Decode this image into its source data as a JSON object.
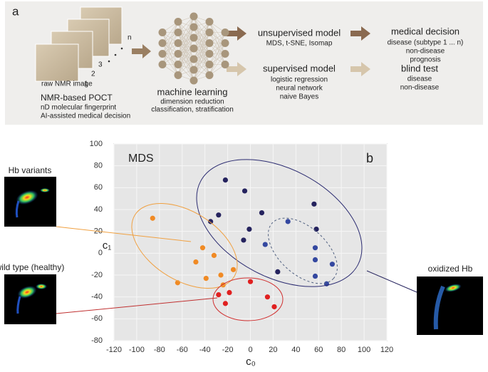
{
  "diagram": {
    "panel_a": {
      "label": "a",
      "image_stack": {
        "caption": "raw NMR image",
        "numbers": [
          "1",
          "2",
          "3",
          "n"
        ]
      },
      "poct": [
        "NMR-based POCT",
        "nD molecular fingerprint",
        "AI-assisted medical decision"
      ],
      "ml": [
        "machine learning",
        "dimension reduction",
        "classification, stratification"
      ],
      "unsupervised": [
        "unsupervised model",
        "MDS, t-SNE, Isomap"
      ],
      "supervised": [
        "supervised model",
        "logistic regression",
        "neural network",
        "naive Bayes"
      ],
      "decision": [
        "medical decision",
        "disease (subtype 1 ... n)",
        "non-disease",
        "prognosis"
      ],
      "blind": [
        "blind test",
        "disease",
        "non-disease"
      ]
    },
    "insets": [
      "Hb variants",
      "wild type (healthy)",
      "oxidized Hb"
    ]
  },
  "chart_data": {
    "type": "scatter",
    "title": "MDS",
    "panel_label": "b",
    "x_label": "c₀",
    "y_label": "c₁",
    "xlim": [
      -120,
      120
    ],
    "xticks": [
      -120,
      -100,
      -80,
      -60,
      -40,
      -20,
      0,
      20,
      40,
      60,
      80,
      100,
      120
    ],
    "ylim": [
      -80,
      100
    ],
    "yticks": [
      -80,
      -60,
      -40,
      -20,
      0,
      20,
      40,
      60,
      80,
      100
    ],
    "grid": true,
    "series": [
      {
        "color": "#f08a24",
        "x": [
          -86,
          -42,
          -32,
          -48,
          -39,
          -64,
          -26,
          -15,
          -24
        ],
        "values": [
          32,
          5,
          -2,
          -8,
          -23,
          -27,
          -20,
          -15,
          -29
        ]
      },
      {
        "color": "#e02020",
        "x": [
          -28,
          -18.5,
          -22,
          0,
          15,
          21
        ],
        "values": [
          -38,
          -36,
          -46,
          -26,
          -40,
          -49
        ]
      },
      {
        "color": "#25235e",
        "x": [
          -22,
          -5,
          -28,
          -35,
          10,
          -1,
          -6,
          24,
          56,
          58
        ],
        "values": [
          67,
          57,
          35,
          29,
          37,
          22,
          12,
          -17,
          45,
          22
        ]
      },
      {
        "color": "#3448a0",
        "x": [
          33,
          13,
          57,
          57,
          57,
          72,
          67
        ],
        "values": [
          29,
          8,
          5,
          -6,
          -21,
          -10,
          -28
        ]
      }
    ]
  }
}
